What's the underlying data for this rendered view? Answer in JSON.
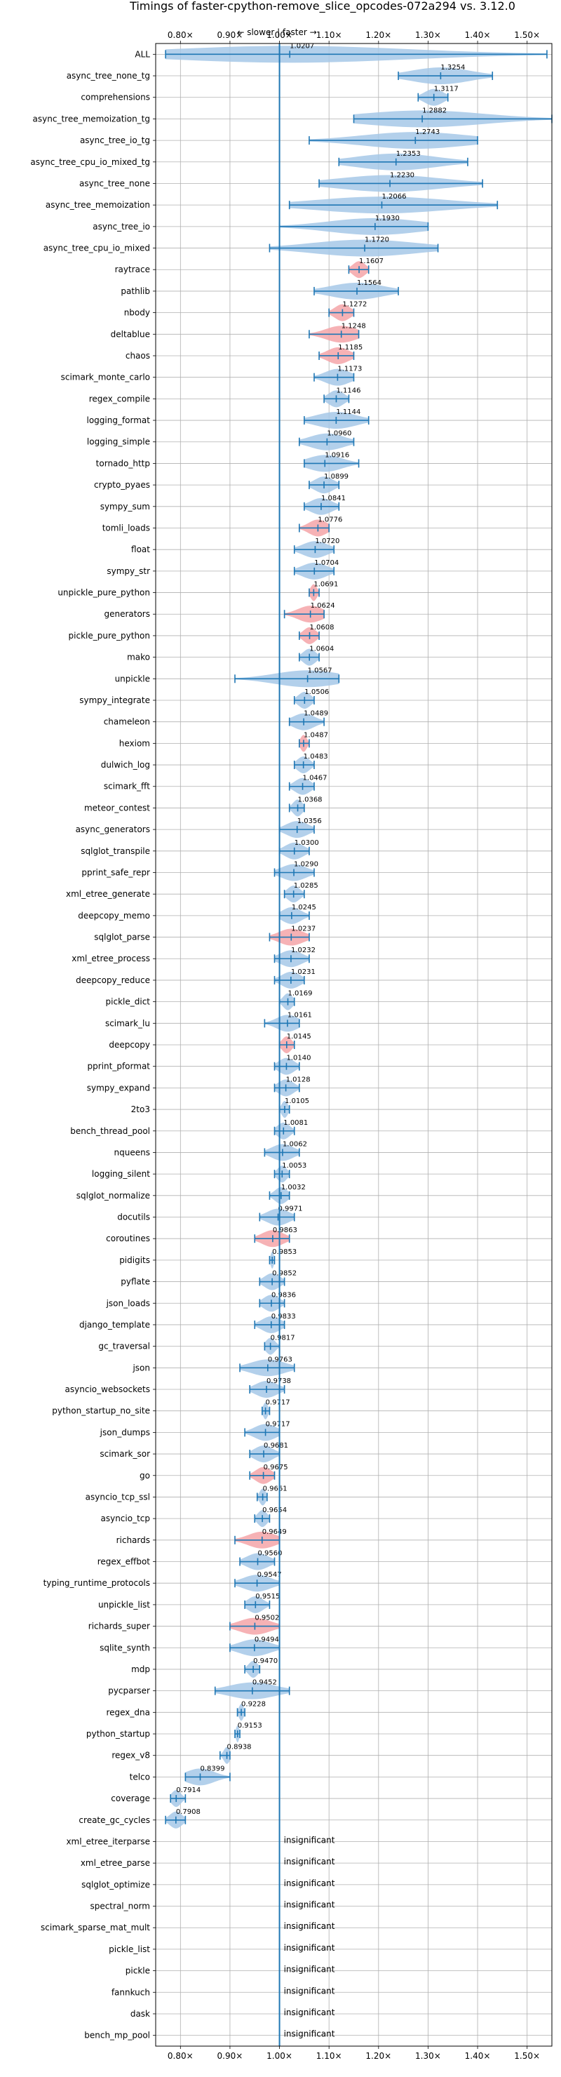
{
  "chart_data": {
    "type": "violin",
    "title": "Timings of faster-cpython-remove_slice_opcodes-072a294 vs. 3.12.0",
    "subtitle": "← slower | faster →",
    "xlim": [
      0.75,
      1.55
    ],
    "xticks": [
      0.8,
      0.9,
      1.0,
      1.1,
      1.2,
      1.3,
      1.4,
      1.5
    ],
    "xtick_labels": [
      "0.80×",
      "0.90×",
      "1.00×",
      "1.10×",
      "1.20×",
      "1.30×",
      "1.40×",
      "1.50×"
    ],
    "grid": true,
    "colors": {
      "normal": "#a6c8e8",
      "worse": "#f4a5a8",
      "line": "#1f77b4",
      "reference": "#1f77b4"
    },
    "insignificant_label": "insignificant",
    "benchmarks": [
      {
        "name": "ALL",
        "label": "1.0207",
        "value": 1.0207,
        "min": 0.77,
        "max": 1.54,
        "width": 0.025,
        "worse": false
      },
      {
        "name": "async_tree_none_tg",
        "label": "1.3254",
        "value": 1.3254,
        "min": 1.24,
        "max": 1.43,
        "width": 0.07,
        "worse": false
      },
      {
        "name": "comprehensions",
        "label": "1.3117",
        "value": 1.3117,
        "min": 1.28,
        "max": 1.34,
        "width": 0.03,
        "worse": false
      },
      {
        "name": "async_tree_memoization_tg",
        "label": "1.2882",
        "value": 1.2882,
        "min": 1.15,
        "max": 1.55,
        "width": 0.14,
        "worse": false
      },
      {
        "name": "async_tree_io_tg",
        "label": "1.2743",
        "value": 1.2743,
        "min": 1.06,
        "max": 1.4,
        "width": 0.18,
        "worse": false
      },
      {
        "name": "async_tree_cpu_io_mixed_tg",
        "label": "1.2353",
        "value": 1.2353,
        "min": 1.12,
        "max": 1.38,
        "width": 0.12,
        "worse": false
      },
      {
        "name": "async_tree_none",
        "label": "1.2230",
        "value": 1.223,
        "min": 1.08,
        "max": 1.41,
        "width": 0.16,
        "worse": false
      },
      {
        "name": "async_tree_memoization",
        "label": "1.2066",
        "value": 1.2066,
        "min": 1.02,
        "max": 1.44,
        "width": 0.18,
        "worse": false
      },
      {
        "name": "async_tree_io",
        "label": "1.1930",
        "value": 1.193,
        "min": 1.0,
        "max": 1.3,
        "width": 0.16,
        "worse": false
      },
      {
        "name": "async_tree_cpu_io_mixed",
        "label": "1.1720",
        "value": 1.172,
        "min": 0.98,
        "max": 1.32,
        "width": 0.16,
        "worse": false
      },
      {
        "name": "raytrace",
        "label": "1.1607",
        "value": 1.1607,
        "min": 1.14,
        "max": 1.18,
        "width": 0.02,
        "worse": true
      },
      {
        "name": "pathlib",
        "label": "1.1564",
        "value": 1.1564,
        "min": 1.07,
        "max": 1.24,
        "width": 0.07,
        "worse": false
      },
      {
        "name": "nbody",
        "label": "1.1272",
        "value": 1.1272,
        "min": 1.1,
        "max": 1.15,
        "width": 0.025,
        "worse": true
      },
      {
        "name": "deltablue",
        "label": "1.1248",
        "value": 1.1248,
        "min": 1.06,
        "max": 1.16,
        "width": 0.03,
        "worse": true
      },
      {
        "name": "chaos",
        "label": "1.1185",
        "value": 1.1185,
        "min": 1.08,
        "max": 1.15,
        "width": 0.03,
        "worse": true
      },
      {
        "name": "scimark_monte_carlo",
        "label": "1.1173",
        "value": 1.1173,
        "min": 1.07,
        "max": 1.15,
        "width": 0.03,
        "worse": false
      },
      {
        "name": "regex_compile",
        "label": "1.1146",
        "value": 1.1146,
        "min": 1.09,
        "max": 1.14,
        "width": 0.025,
        "worse": false
      },
      {
        "name": "logging_format",
        "label": "1.1144",
        "value": 1.1144,
        "min": 1.05,
        "max": 1.18,
        "width": 0.05,
        "worse": false
      },
      {
        "name": "logging_simple",
        "label": "1.0960",
        "value": 1.096,
        "min": 1.04,
        "max": 1.15,
        "width": 0.05,
        "worse": false
      },
      {
        "name": "tornado_http",
        "label": "1.0916",
        "value": 1.0916,
        "min": 1.05,
        "max": 1.16,
        "width": 0.04,
        "worse": false
      },
      {
        "name": "crypto_pyaes",
        "label": "1.0899",
        "value": 1.0899,
        "min": 1.06,
        "max": 1.12,
        "width": 0.025,
        "worse": false
      },
      {
        "name": "sympy_sum",
        "label": "1.0841",
        "value": 1.0841,
        "min": 1.05,
        "max": 1.12,
        "width": 0.03,
        "worse": false
      },
      {
        "name": "tomli_loads",
        "label": "1.0776",
        "value": 1.0776,
        "min": 1.04,
        "max": 1.1,
        "width": 0.035,
        "worse": true
      },
      {
        "name": "float",
        "label": "1.0720",
        "value": 1.072,
        "min": 1.03,
        "max": 1.11,
        "width": 0.035,
        "worse": false
      },
      {
        "name": "sympy_str",
        "label": "1.0704",
        "value": 1.0704,
        "min": 1.03,
        "max": 1.11,
        "width": 0.03,
        "worse": false
      },
      {
        "name": "unpickle_pure_python",
        "label": "1.0691",
        "value": 1.0691,
        "min": 1.06,
        "max": 1.08,
        "width": 0.015,
        "worse": true
      },
      {
        "name": "generators",
        "label": "1.0624",
        "value": 1.0624,
        "min": 1.01,
        "max": 1.09,
        "width": 0.035,
        "worse": true
      },
      {
        "name": "pickle_pure_python",
        "label": "1.0608",
        "value": 1.0608,
        "min": 1.04,
        "max": 1.08,
        "width": 0.02,
        "worse": true
      },
      {
        "name": "mako",
        "label": "1.0604",
        "value": 1.0604,
        "min": 1.04,
        "max": 1.08,
        "width": 0.02,
        "worse": false
      },
      {
        "name": "unpickle",
        "label": "1.0567",
        "value": 1.0567,
        "min": 0.91,
        "max": 1.12,
        "width": 0.05,
        "worse": false
      },
      {
        "name": "sympy_integrate",
        "label": "1.0506",
        "value": 1.0506,
        "min": 1.03,
        "max": 1.07,
        "width": 0.02,
        "worse": false
      },
      {
        "name": "chameleon",
        "label": "1.0489",
        "value": 1.0489,
        "min": 1.02,
        "max": 1.09,
        "width": 0.025,
        "worse": false
      },
      {
        "name": "hexiom",
        "label": "1.0487",
        "value": 1.0487,
        "min": 1.04,
        "max": 1.06,
        "width": 0.012,
        "worse": true
      },
      {
        "name": "dulwich_log",
        "label": "1.0483",
        "value": 1.0483,
        "min": 1.03,
        "max": 1.07,
        "width": 0.02,
        "worse": false
      },
      {
        "name": "scimark_fft",
        "label": "1.0467",
        "value": 1.0467,
        "min": 1.02,
        "max": 1.07,
        "width": 0.02,
        "worse": false
      },
      {
        "name": "meteor_contest",
        "label": "1.0368",
        "value": 1.0368,
        "min": 1.02,
        "max": 1.05,
        "width": 0.015,
        "worse": false
      },
      {
        "name": "async_generators",
        "label": "1.0356",
        "value": 1.0356,
        "min": 1.0,
        "max": 1.07,
        "width": 0.03,
        "worse": false
      },
      {
        "name": "sqlglot_transpile",
        "label": "1.0300",
        "value": 1.03,
        "min": 1.0,
        "max": 1.06,
        "width": 0.025,
        "worse": false
      },
      {
        "name": "pprint_safe_repr",
        "label": "1.0290",
        "value": 1.029,
        "min": 0.99,
        "max": 1.07,
        "width": 0.03,
        "worse": false
      },
      {
        "name": "xml_etree_generate",
        "label": "1.0285",
        "value": 1.0285,
        "min": 1.01,
        "max": 1.05,
        "width": 0.02,
        "worse": false
      },
      {
        "name": "deepcopy_memo",
        "label": "1.0245",
        "value": 1.0245,
        "min": 1.0,
        "max": 1.06,
        "width": 0.025,
        "worse": false
      },
      {
        "name": "sqlglot_parse",
        "label": "1.0237",
        "value": 1.0237,
        "min": 0.98,
        "max": 1.06,
        "width": 0.035,
        "worse": true
      },
      {
        "name": "xml_etree_process",
        "label": "1.0232",
        "value": 1.0232,
        "min": 0.99,
        "max": 1.06,
        "width": 0.03,
        "worse": false
      },
      {
        "name": "deepcopy_reduce",
        "label": "1.0231",
        "value": 1.0231,
        "min": 0.99,
        "max": 1.05,
        "width": 0.03,
        "worse": false
      },
      {
        "name": "pickle_dict",
        "label": "1.0169",
        "value": 1.0169,
        "min": 1.0,
        "max": 1.03,
        "width": 0.015,
        "worse": false
      },
      {
        "name": "scimark_lu",
        "label": "1.0161",
        "value": 1.0161,
        "min": 0.97,
        "max": 1.04,
        "width": 0.02,
        "worse": false
      },
      {
        "name": "deepcopy",
        "label": "1.0145",
        "value": 1.0145,
        "min": 1.0,
        "max": 1.03,
        "width": 0.015,
        "worse": true
      },
      {
        "name": "pprint_pformat",
        "label": "1.0140",
        "value": 1.014,
        "min": 0.99,
        "max": 1.04,
        "width": 0.02,
        "worse": false
      },
      {
        "name": "sympy_expand",
        "label": "1.0128",
        "value": 1.0128,
        "min": 0.99,
        "max": 1.04,
        "width": 0.02,
        "worse": false
      },
      {
        "name": "2to3",
        "label": "1.0105",
        "value": 1.0105,
        "min": 1.0,
        "max": 1.02,
        "width": 0.012,
        "worse": false
      },
      {
        "name": "bench_thread_pool",
        "label": "1.0081",
        "value": 1.0081,
        "min": 0.99,
        "max": 1.03,
        "width": 0.018,
        "worse": false
      },
      {
        "name": "nqueens",
        "label": "1.0062",
        "value": 1.0062,
        "min": 0.97,
        "max": 1.04,
        "width": 0.02,
        "worse": false
      },
      {
        "name": "logging_silent",
        "label": "1.0053",
        "value": 1.0053,
        "min": 0.99,
        "max": 1.02,
        "width": 0.015,
        "worse": false
      },
      {
        "name": "sqlglot_normalize",
        "label": "1.0032",
        "value": 1.0032,
        "min": 0.98,
        "max": 1.02,
        "width": 0.018,
        "worse": false
      },
      {
        "name": "docutils",
        "label": "0.9971",
        "value": 0.9971,
        "min": 0.96,
        "max": 1.03,
        "width": 0.03,
        "worse": false
      },
      {
        "name": "coroutines",
        "label": "0.9863",
        "value": 0.9863,
        "min": 0.95,
        "max": 1.02,
        "width": 0.03,
        "worse": true
      },
      {
        "name": "pidigits",
        "label": "0.9853",
        "value": 0.9853,
        "min": 0.98,
        "max": 0.99,
        "width": 0.008,
        "worse": false
      },
      {
        "name": "pyflate",
        "label": "0.9852",
        "value": 0.9852,
        "min": 0.96,
        "max": 1.01,
        "width": 0.02,
        "worse": false
      },
      {
        "name": "json_loads",
        "label": "0.9836",
        "value": 0.9836,
        "min": 0.96,
        "max": 1.01,
        "width": 0.02,
        "worse": false
      },
      {
        "name": "django_template",
        "label": "0.9833",
        "value": 0.9833,
        "min": 0.95,
        "max": 1.01,
        "width": 0.025,
        "worse": false
      },
      {
        "name": "gc_traversal",
        "label": "0.9817",
        "value": 0.9817,
        "min": 0.97,
        "max": 1.0,
        "width": 0.015,
        "worse": false
      },
      {
        "name": "json",
        "label": "0.9763",
        "value": 0.9763,
        "min": 0.92,
        "max": 1.03,
        "width": 0.04,
        "worse": false
      },
      {
        "name": "asyncio_websockets",
        "label": "0.9738",
        "value": 0.9738,
        "min": 0.94,
        "max": 1.01,
        "width": 0.03,
        "worse": false
      },
      {
        "name": "python_startup_no_site",
        "label": "0.9717",
        "value": 0.9717,
        "min": 0.965,
        "max": 0.98,
        "width": 0.008,
        "worse": false
      },
      {
        "name": "json_dumps",
        "label": "0.9717",
        "value": 0.9717,
        "min": 0.93,
        "max": 1.0,
        "width": 0.025,
        "worse": false
      },
      {
        "name": "scimark_sor",
        "label": "0.9681",
        "value": 0.9681,
        "min": 0.94,
        "max": 1.0,
        "width": 0.02,
        "worse": false
      },
      {
        "name": "go",
        "label": "0.9675",
        "value": 0.9675,
        "min": 0.94,
        "max": 0.99,
        "width": 0.018,
        "worse": true
      },
      {
        "name": "asyncio_tcp_ssl",
        "label": "0.9661",
        "value": 0.9661,
        "min": 0.955,
        "max": 0.975,
        "width": 0.01,
        "worse": false
      },
      {
        "name": "asyncio_tcp",
        "label": "0.9654",
        "value": 0.9654,
        "min": 0.95,
        "max": 0.98,
        "width": 0.012,
        "worse": false
      },
      {
        "name": "richards",
        "label": "0.9649",
        "value": 0.9649,
        "min": 0.91,
        "max": 1.0,
        "width": 0.05,
        "worse": true
      },
      {
        "name": "regex_effbot",
        "label": "0.9560",
        "value": 0.956,
        "min": 0.92,
        "max": 0.99,
        "width": 0.03,
        "worse": false
      },
      {
        "name": "typing_runtime_protocols",
        "label": "0.9547",
        "value": 0.9547,
        "min": 0.91,
        "max": 1.0,
        "width": 0.04,
        "worse": false
      },
      {
        "name": "unpickle_list",
        "label": "0.9515",
        "value": 0.9515,
        "min": 0.93,
        "max": 0.98,
        "width": 0.02,
        "worse": false
      },
      {
        "name": "richards_super",
        "label": "0.9502",
        "value": 0.9502,
        "min": 0.9,
        "max": 1.0,
        "width": 0.05,
        "worse": true
      },
      {
        "name": "sqlite_synth",
        "label": "0.9494",
        "value": 0.9494,
        "min": 0.9,
        "max": 1.0,
        "width": 0.04,
        "worse": false
      },
      {
        "name": "mdp",
        "label": "0.9470",
        "value": 0.947,
        "min": 0.93,
        "max": 0.96,
        "width": 0.015,
        "worse": false
      },
      {
        "name": "pycparser",
        "label": "0.9452",
        "value": 0.9452,
        "min": 0.87,
        "max": 1.02,
        "width": 0.04,
        "worse": false
      },
      {
        "name": "regex_dna",
        "label": "0.9228",
        "value": 0.9228,
        "min": 0.915,
        "max": 0.93,
        "width": 0.01,
        "worse": false
      },
      {
        "name": "python_startup",
        "label": "0.9153",
        "value": 0.9153,
        "min": 0.91,
        "max": 0.92,
        "width": 0.008,
        "worse": false
      },
      {
        "name": "regex_v8",
        "label": "0.8938",
        "value": 0.8938,
        "min": 0.88,
        "max": 0.9,
        "width": 0.012,
        "worse": false
      },
      {
        "name": "telco",
        "label": "0.8399",
        "value": 0.8399,
        "min": 0.81,
        "max": 0.9,
        "width": 0.03,
        "worse": false
      },
      {
        "name": "coverage",
        "label": "0.7914",
        "value": 0.7914,
        "min": 0.78,
        "max": 0.81,
        "width": 0.018,
        "worse": false
      },
      {
        "name": "create_gc_cycles",
        "label": "0.7908",
        "value": 0.7908,
        "min": 0.77,
        "max": 0.81,
        "width": 0.02,
        "worse": false
      },
      {
        "name": "xml_etree_iterparse",
        "insignificant": true
      },
      {
        "name": "xml_etree_parse",
        "insignificant": true
      },
      {
        "name": "sqlglot_optimize",
        "insignificant": true
      },
      {
        "name": "spectral_norm",
        "insignificant": true
      },
      {
        "name": "scimark_sparse_mat_mult",
        "insignificant": true
      },
      {
        "name": "pickle_list",
        "insignificant": true
      },
      {
        "name": "pickle",
        "insignificant": true
      },
      {
        "name": "fannkuch",
        "insignificant": true
      },
      {
        "name": "dask",
        "insignificant": true
      },
      {
        "name": "bench_mp_pool",
        "insignificant": true
      }
    ]
  }
}
